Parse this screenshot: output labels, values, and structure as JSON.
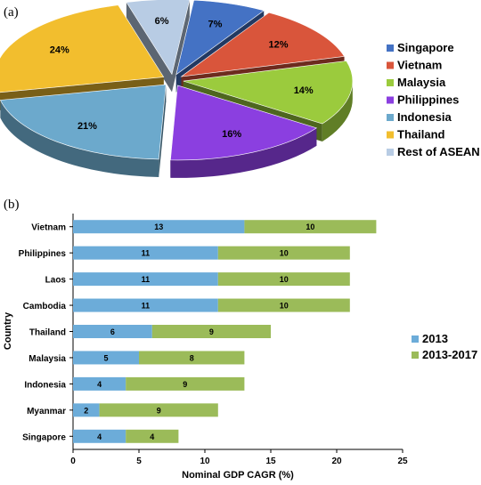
{
  "panels": {
    "a": "(a)",
    "b": "(b)"
  },
  "chart_data": [
    {
      "type": "pie",
      "labels": [
        "Singapore",
        "Vietnam",
        "Malaysia",
        "Philippines",
        "Indonesia",
        "Thailand",
        "Rest of ASEAN"
      ],
      "values": [
        7,
        12,
        14,
        16,
        21,
        24,
        6
      ],
      "value_labels": [
        "7%",
        "12%",
        "14%",
        "16%",
        "21%",
        "24%",
        "6%"
      ],
      "colors": [
        "#4472C4",
        "#D9553B",
        "#9BCB3D",
        "#8B3FE0",
        "#6CA9CC",
        "#F2BE2E",
        "#B8CCE4"
      ],
      "legend": "right",
      "style": "3d-exploded"
    },
    {
      "type": "bar",
      "orientation": "horizontal",
      "stacked": true,
      "categories": [
        "Vietnam",
        "Philippines",
        "Laos",
        "Cambodia",
        "Thailand",
        "Malaysia",
        "Indonesia",
        "Myanmar",
        "Singapore"
      ],
      "series": [
        {
          "name": "2013",
          "values": [
            13,
            11,
            11,
            11,
            6,
            5,
            4,
            2,
            4
          ],
          "color": "#6CACD9"
        },
        {
          "name": "2013-2017",
          "values": [
            10,
            10,
            10,
            10,
            9,
            8,
            9,
            9,
            4
          ],
          "color": "#9BBB59"
        }
      ],
      "xlabel": "Nominal GDP CAGR (%)",
      "ylabel": "Country",
      "xlim": [
        0,
        25
      ],
      "xticks": [
        "0",
        "5",
        "10",
        "15",
        "20",
        "25"
      ],
      "grid": false,
      "legend": "right"
    }
  ]
}
